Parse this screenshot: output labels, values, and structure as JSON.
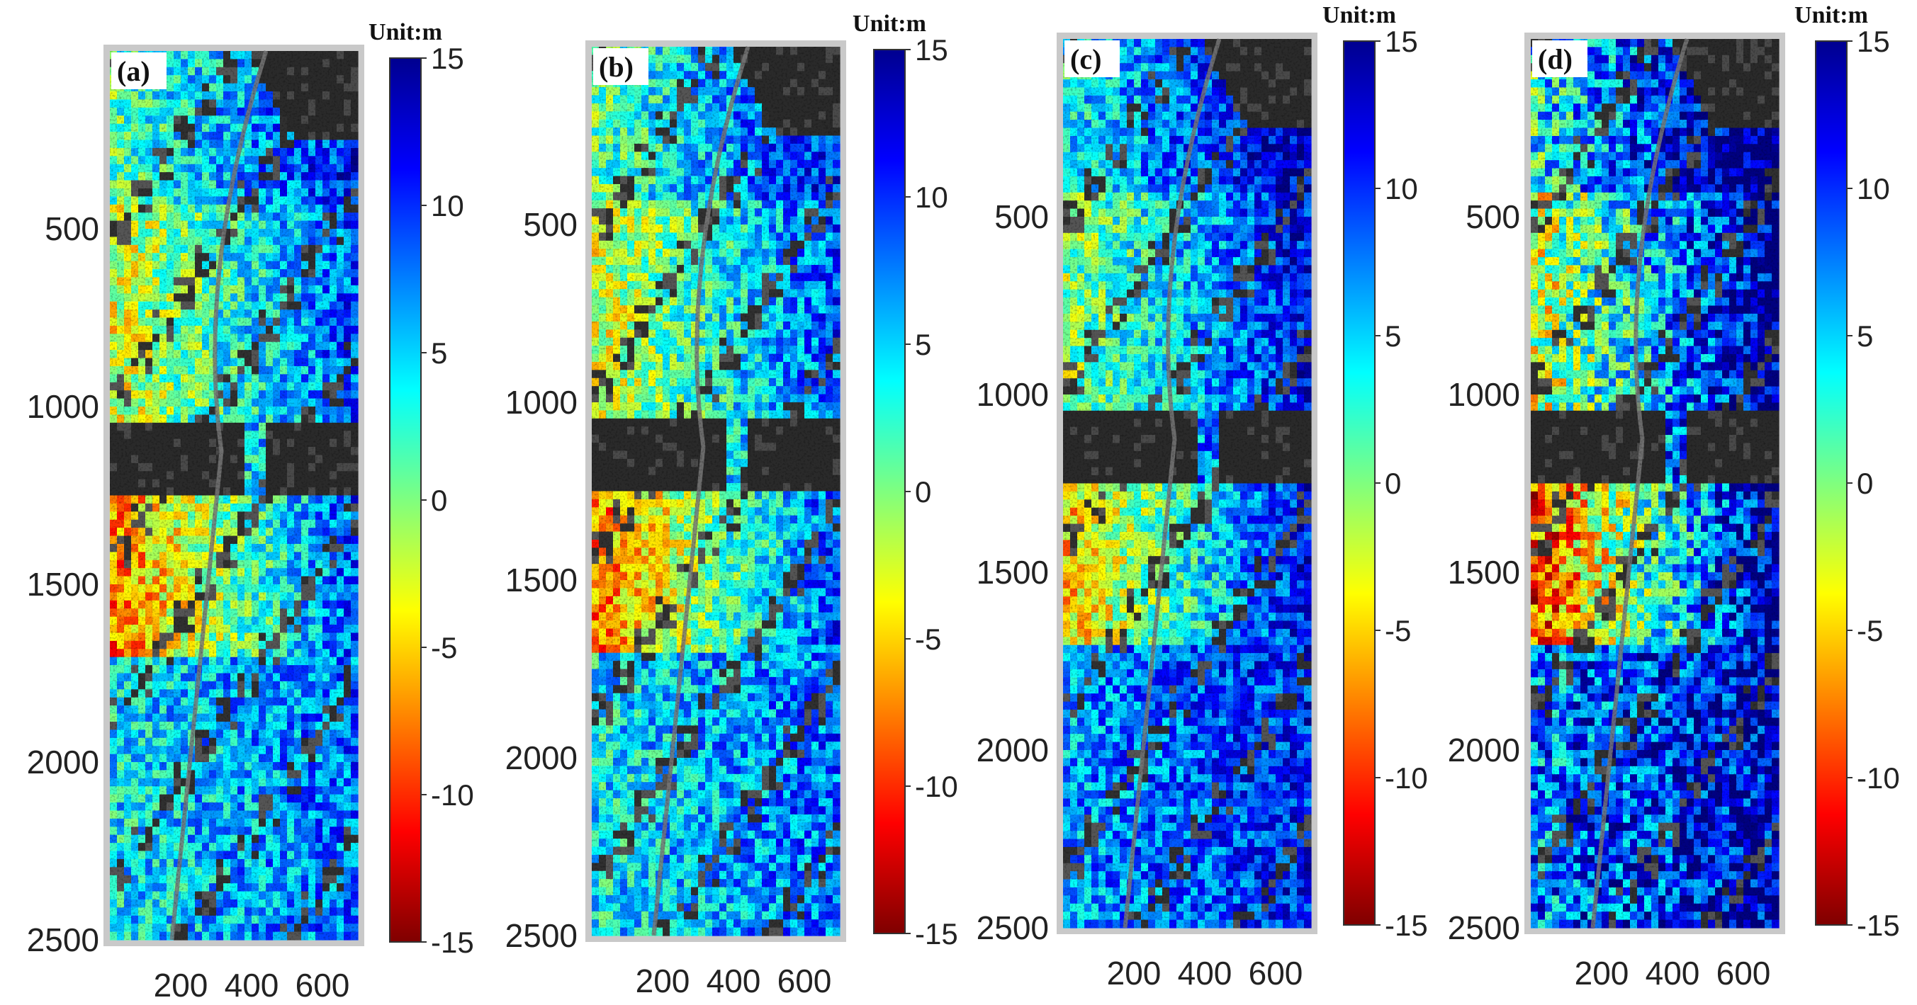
{
  "chart_data": {
    "type": "heatmap",
    "description_units": "Unit:m",
    "panels": [
      {
        "label": "(a)",
        "xticks": [
          200,
          400,
          600
        ],
        "yticks": [
          500,
          1000,
          1500,
          2000,
          2500
        ],
        "colorbar_ticks": [
          15,
          10,
          5,
          0,
          -5,
          -10,
          -15
        ],
        "unit": "Unit:m",
        "clim": [
          -15,
          15
        ],
        "xlim": [
          0,
          700
        ],
        "ylim": [
          0,
          2500
        ],
        "colormap": "jet",
        "style": "moderate"
      },
      {
        "label": "(b)",
        "xticks": [
          200,
          400,
          600
        ],
        "yticks": [
          500,
          1000,
          1500,
          2000,
          2500
        ],
        "colorbar_ticks": [
          15,
          10,
          5,
          0,
          -5,
          -10,
          -15
        ],
        "unit": "Unit:m",
        "clim": [
          -15,
          15
        ],
        "xlim": [
          0,
          700
        ],
        "ylim": [
          0,
          2500
        ],
        "colormap": "jet",
        "style": "moderate"
      },
      {
        "label": "(c)",
        "xticks": [
          200,
          400,
          600
        ],
        "yticks": [
          500,
          1000,
          1500,
          2000,
          2500
        ],
        "colorbar_ticks": [
          15,
          10,
          5,
          0,
          -5,
          -10,
          -15
        ],
        "unit": "Unit:m",
        "clim": [
          -15,
          15
        ],
        "xlim": [
          0,
          700
        ],
        "ylim": [
          0,
          2500
        ],
        "colormap": "jet",
        "style": "cool"
      },
      {
        "label": "(d)",
        "xticks": [
          200,
          400,
          600
        ],
        "yticks": [
          500,
          1000,
          1500,
          2000,
          2500
        ],
        "colorbar_ticks": [
          15,
          10,
          5,
          0,
          -5,
          -10,
          -15
        ],
        "unit": "Unit:m",
        "clim": [
          -15,
          15
        ],
        "xlim": [
          0,
          700
        ],
        "ylim": [
          0,
          2500
        ],
        "colormap": "jet",
        "style": "extreme"
      }
    ]
  }
}
